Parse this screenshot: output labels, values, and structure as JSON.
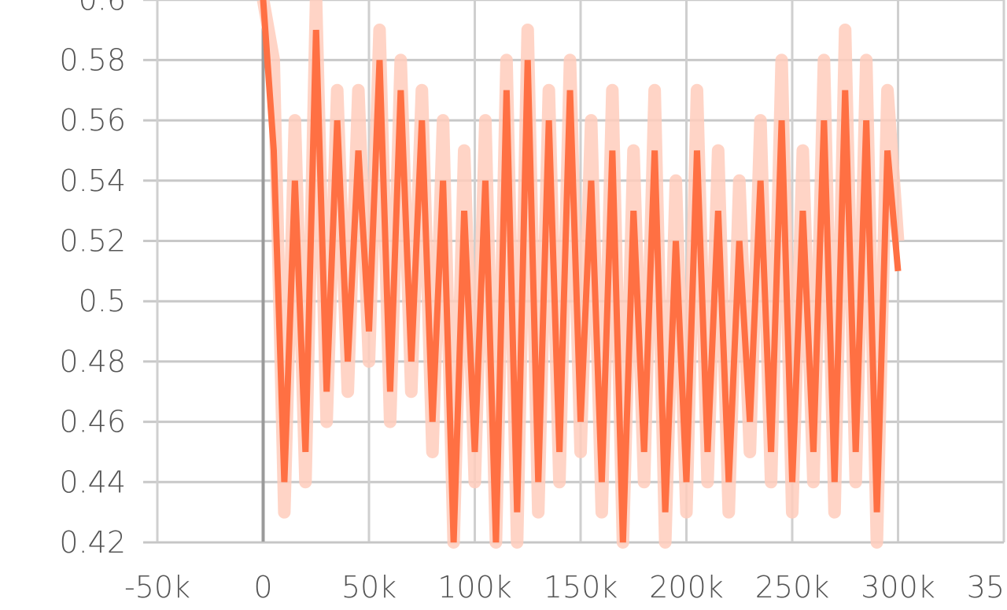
{
  "chart_data": {
    "type": "line",
    "title": "",
    "xlabel": "",
    "ylabel": "",
    "xlim": [
      -50000,
      350000
    ],
    "ylim": [
      0.42,
      0.6
    ],
    "x_ticks": [
      -50000,
      0,
      50000,
      100000,
      150000,
      200000,
      250000,
      300000,
      350000
    ],
    "x_tick_labels": [
      "-50k",
      "0",
      "50k",
      "100k",
      "150k",
      "200k",
      "250k",
      "300k",
      "350k"
    ],
    "y_ticks": [
      0.42,
      0.44,
      0.46,
      0.48,
      0.5,
      0.52,
      0.54,
      0.56,
      0.58,
      0.6
    ],
    "y_tick_labels": [
      "0.42",
      "0.44",
      "0.46",
      "0.48",
      "0.5",
      "0.52",
      "0.54",
      "0.56",
      "0.58",
      "0.6"
    ],
    "grid": true,
    "series": [
      {
        "name": "",
        "color": "#ff7043",
        "raw_color": "#ffccbc",
        "x": [
          0,
          5000,
          10000,
          15000,
          20000,
          25000,
          30000,
          35000,
          40000,
          45000,
          50000,
          55000,
          60000,
          65000,
          70000,
          75000,
          80000,
          85000,
          90000,
          95000,
          100000,
          105000,
          110000,
          115000,
          120000,
          125000,
          130000,
          135000,
          140000,
          145000,
          150000,
          155000,
          160000,
          165000,
          170000,
          175000,
          180000,
          185000,
          190000,
          195000,
          200000,
          205000,
          210000,
          215000,
          220000,
          225000,
          230000,
          235000,
          240000,
          245000,
          250000,
          255000,
          260000,
          265000,
          270000,
          275000,
          280000,
          285000,
          290000,
          295000,
          300000
        ],
        "smoothed": [
          0.6,
          0.55,
          0.44,
          0.54,
          0.45,
          0.59,
          0.47,
          0.56,
          0.48,
          0.55,
          0.49,
          0.58,
          0.47,
          0.57,
          0.48,
          0.56,
          0.46,
          0.54,
          0.42,
          0.53,
          0.45,
          0.54,
          0.42,
          0.57,
          0.43,
          0.58,
          0.44,
          0.56,
          0.45,
          0.57,
          0.46,
          0.54,
          0.44,
          0.55,
          0.42,
          0.53,
          0.45,
          0.55,
          0.43,
          0.52,
          0.44,
          0.55,
          0.45,
          0.53,
          0.44,
          0.52,
          0.46,
          0.54,
          0.45,
          0.56,
          0.44,
          0.53,
          0.45,
          0.56,
          0.44,
          0.57,
          0.45,
          0.56,
          0.43,
          0.55,
          0.51
        ],
        "raw": [
          0.6,
          0.58,
          0.43,
          0.56,
          0.44,
          0.6,
          0.46,
          0.57,
          0.47,
          0.57,
          0.48,
          0.59,
          0.46,
          0.58,
          0.47,
          0.57,
          0.45,
          0.56,
          0.42,
          0.55,
          0.44,
          0.56,
          0.42,
          0.58,
          0.42,
          0.59,
          0.43,
          0.57,
          0.44,
          0.58,
          0.45,
          0.56,
          0.43,
          0.57,
          0.42,
          0.55,
          0.44,
          0.57,
          0.42,
          0.54,
          0.43,
          0.57,
          0.44,
          0.55,
          0.43,
          0.54,
          0.45,
          0.56,
          0.44,
          0.58,
          0.43,
          0.55,
          0.44,
          0.58,
          0.43,
          0.59,
          0.44,
          0.58,
          0.42,
          0.57,
          0.52
        ]
      }
    ]
  }
}
